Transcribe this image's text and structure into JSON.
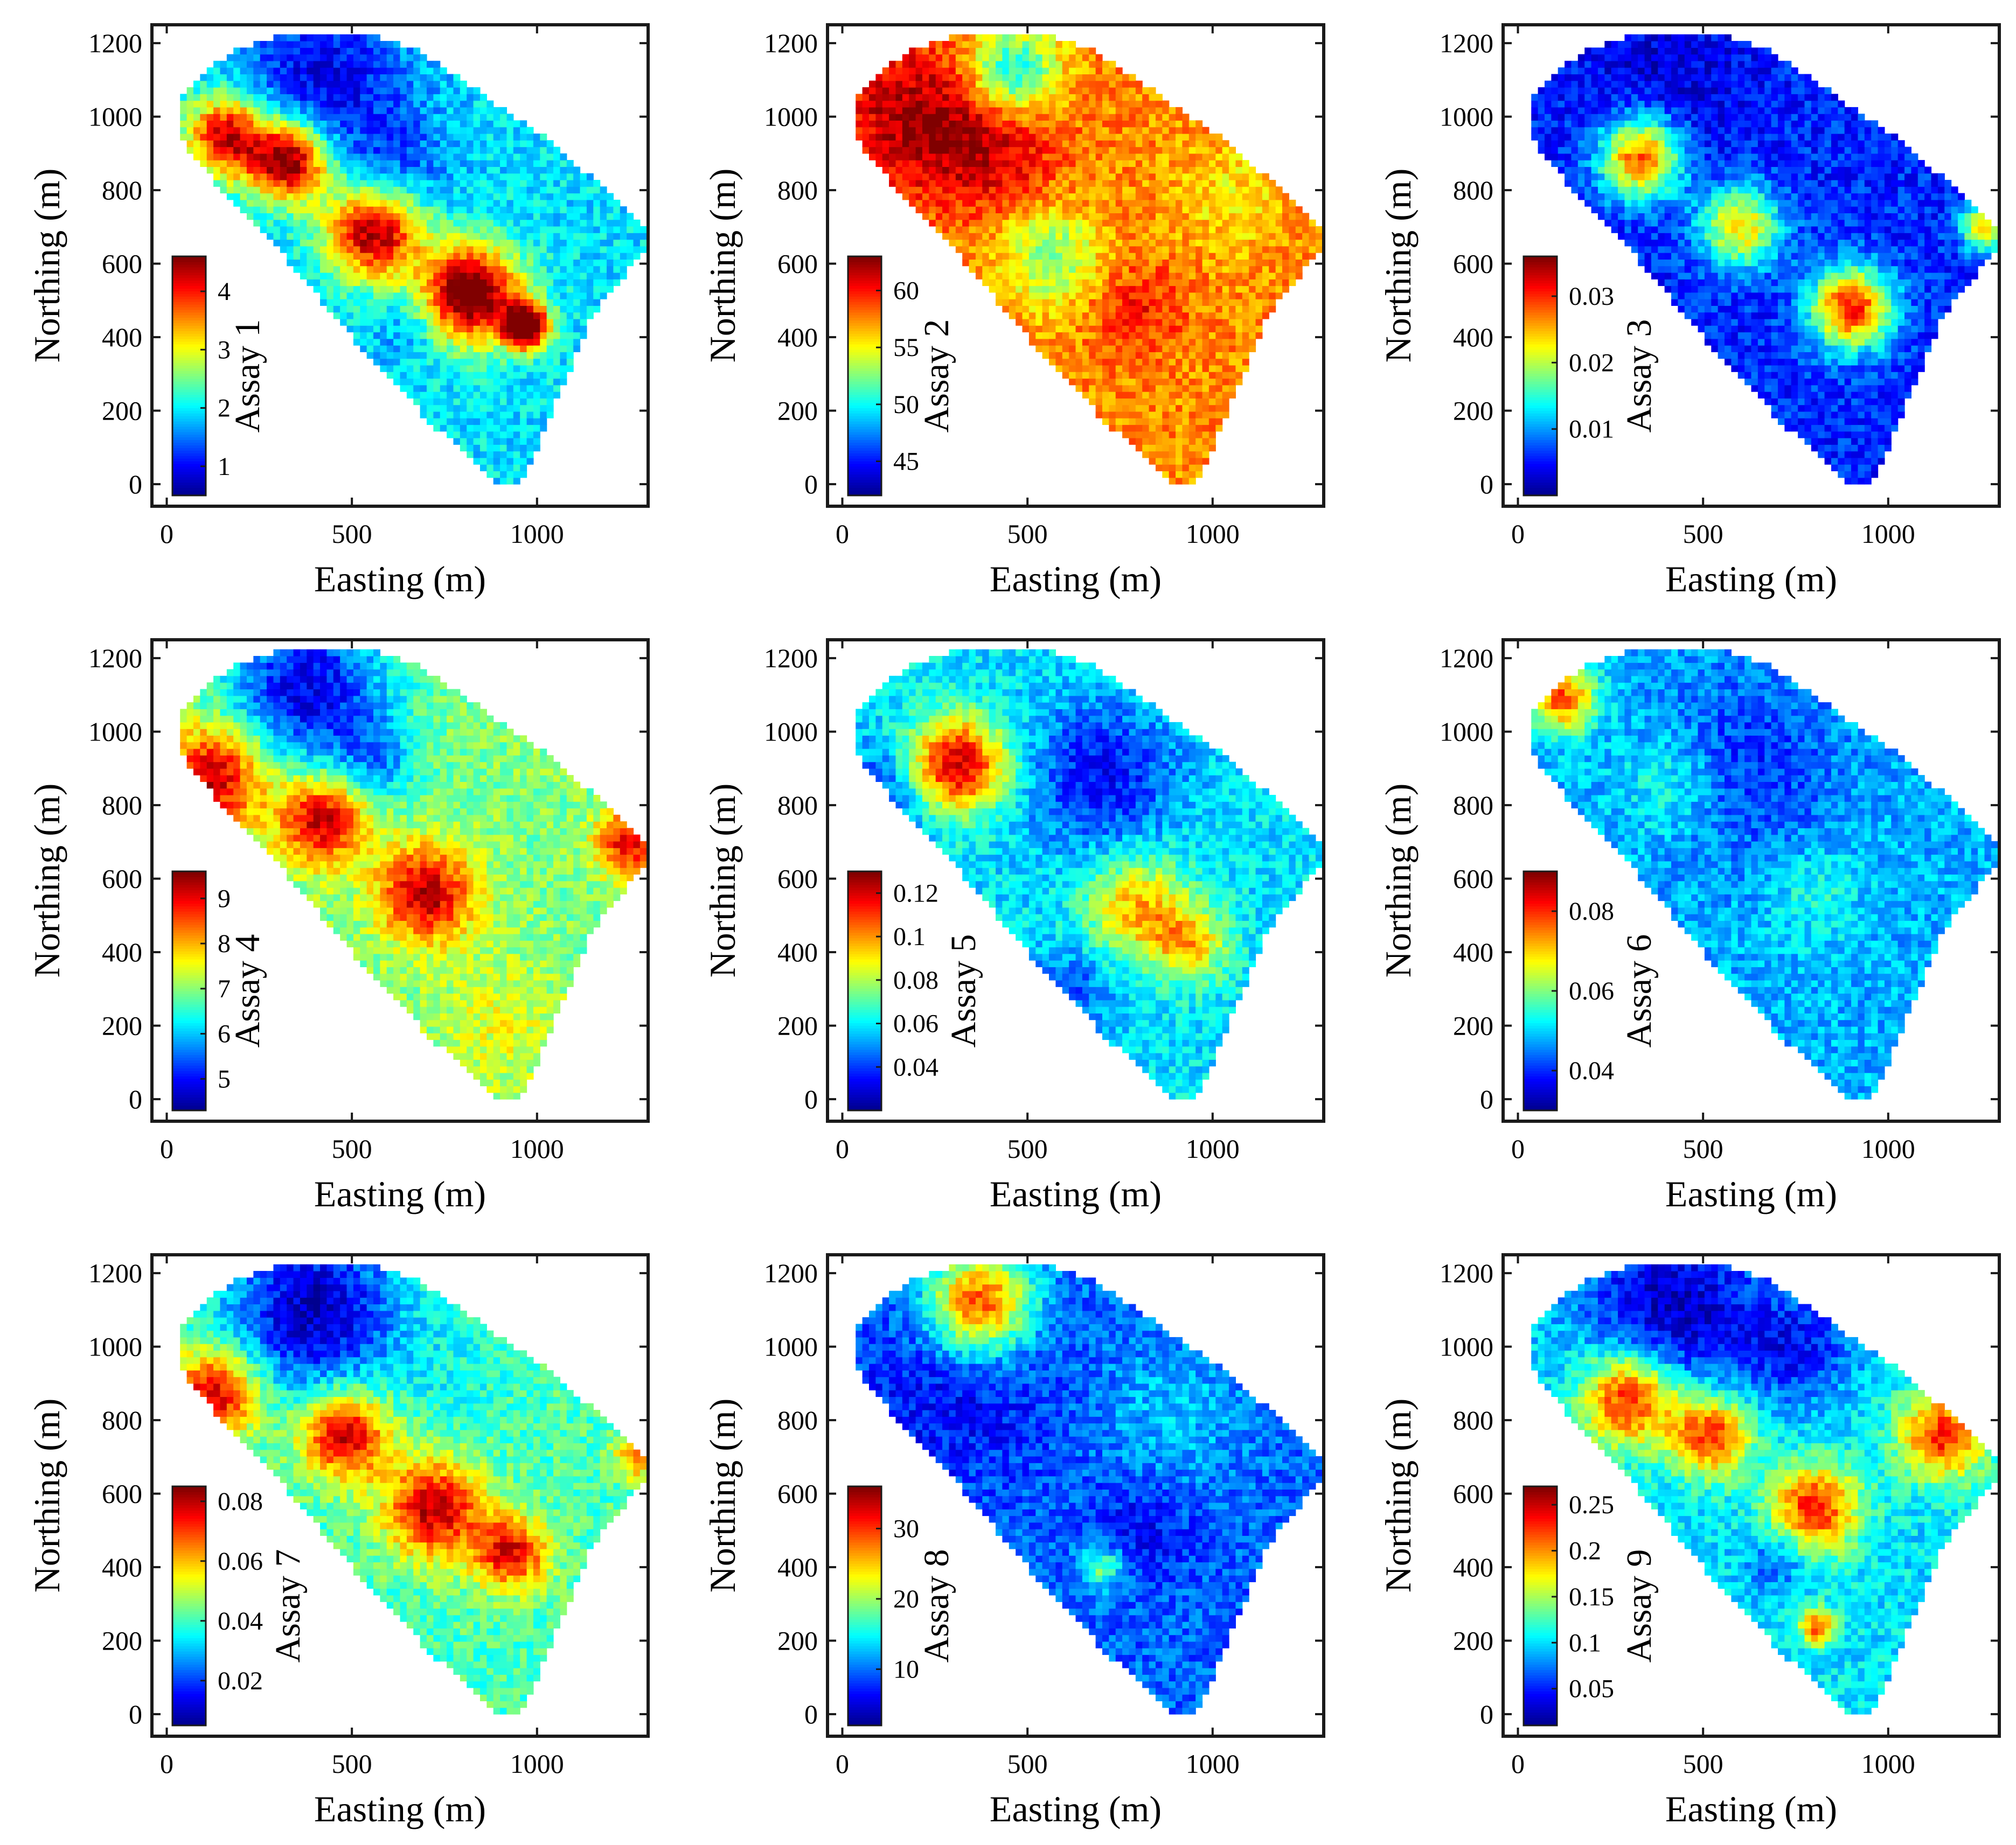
{
  "colors": {
    "jet": [
      "#00008f",
      "#0000ff",
      "#0080ff",
      "#00ffff",
      "#80ff80",
      "#ffff00",
      "#ff8000",
      "#ff0000",
      "#800000"
    ],
    "frame": "#1a1a1a",
    "background": "#ffffff"
  },
  "chart_data": [
    {
      "type": "heatmap",
      "title": "",
      "xlabel": "Easting (m)",
      "ylabel": "Northing (m)",
      "xlim": [
        -40,
        1300
      ],
      "ylim": [
        -60,
        1250
      ],
      "xticks": [
        0,
        500,
        1000
      ],
      "xtick_labels": [
        "0",
        "500",
        "1000"
      ],
      "yticks": [
        0,
        200,
        400,
        600,
        800,
        1000,
        1200
      ],
      "ytick_labels": [
        "0",
        "200",
        "400",
        "600",
        "800",
        "1000",
        "1200"
      ],
      "colorbar": {
        "label": "Assay 1",
        "range": [
          0.5,
          4.6
        ],
        "ticks": [
          1,
          2,
          3,
          4
        ],
        "tick_labels": [
          "1",
          "2",
          "3",
          "4"
        ]
      },
      "background_value": 0.35,
      "hotspots": [
        {
          "x": 160,
          "y": 950,
          "r": 110,
          "v": 0.6
        },
        {
          "x": 330,
          "y": 880,
          "r": 110,
          "v": 0.7
        },
        {
          "x": 560,
          "y": 690,
          "r": 130,
          "v": 0.65
        },
        {
          "x": 820,
          "y": 520,
          "r": 130,
          "v": 0.75
        },
        {
          "x": 970,
          "y": 430,
          "r": 60,
          "v": 0.85
        }
      ],
      "lows": [
        {
          "x": 420,
          "y": 1100,
          "r": 230,
          "v": 0.25
        },
        {
          "x": 620,
          "y": 850,
          "r": 150,
          "v": 0.15
        },
        {
          "x": 650,
          "y": 420,
          "r": 90,
          "v": 0.1
        }
      ]
    },
    {
      "type": "heatmap",
      "title": "",
      "xlabel": "Easting (m)",
      "ylabel": "Northing (m)",
      "xlim": [
        -40,
        1300
      ],
      "ylim": [
        -60,
        1250
      ],
      "xticks": [
        0,
        500,
        1000
      ],
      "xtick_labels": [
        "0",
        "500",
        "1000"
      ],
      "yticks": [
        0,
        200,
        400,
        600,
        800,
        1000,
        1200
      ],
      "ytick_labels": [
        "0",
        "200",
        "400",
        "600",
        "800",
        "1000",
        "1200"
      ],
      "colorbar": {
        "label": "Assay 2",
        "range": [
          42,
          63
        ],
        "ticks": [
          45,
          50,
          55,
          60
        ],
        "tick_labels": [
          "45",
          "50",
          "55",
          "60"
        ]
      },
      "background_value": 0.74,
      "hotspots": [
        {
          "x": 180,
          "y": 1000,
          "r": 200,
          "v": 0.2
        },
        {
          "x": 400,
          "y": 930,
          "r": 180,
          "v": 0.18
        },
        {
          "x": 800,
          "y": 480,
          "r": 120,
          "v": 0.12
        }
      ],
      "lows": [
        {
          "x": 460,
          "y": 1120,
          "r": 120,
          "v": 0.4
        },
        {
          "x": 560,
          "y": 620,
          "r": 130,
          "v": 0.25
        },
        {
          "x": 1050,
          "y": 780,
          "r": 150,
          "v": 0.1
        }
      ]
    },
    {
      "type": "heatmap",
      "title": "",
      "xlabel": "Easting (m)",
      "ylabel": "Northing (m)",
      "xlim": [
        -40,
        1300
      ],
      "ylim": [
        -60,
        1250
      ],
      "xticks": [
        0,
        500,
        1000
      ],
      "xtick_labels": [
        "0",
        "500",
        "1000"
      ],
      "yticks": [
        0,
        200,
        400,
        600,
        800,
        1000,
        1200
      ],
      "ytick_labels": [
        "0",
        "200",
        "400",
        "600",
        "800",
        "1000",
        "1200"
      ],
      "colorbar": {
        "label": "Assay 3",
        "range": [
          0.0,
          0.036
        ],
        "ticks": [
          0.01,
          0.02,
          0.03
        ],
        "tick_labels": [
          "0.01",
          "0.02",
          "0.03"
        ]
      },
      "background_value": 0.16,
      "hotspots": [
        {
          "x": 330,
          "y": 890,
          "r": 110,
          "v": 0.65
        },
        {
          "x": 600,
          "y": 700,
          "r": 110,
          "v": 0.5
        },
        {
          "x": 900,
          "y": 480,
          "r": 110,
          "v": 0.7
        },
        {
          "x": 1260,
          "y": 700,
          "r": 60,
          "v": 0.55
        }
      ],
      "lows": [
        {
          "x": 400,
          "y": 1100,
          "r": 240,
          "v": 0.08
        }
      ]
    },
    {
      "type": "heatmap",
      "title": "",
      "xlabel": "Easting (m)",
      "ylabel": "Northing (m)",
      "xlim": [
        -40,
        1300
      ],
      "ylim": [
        -60,
        1250
      ],
      "xticks": [
        0,
        500,
        1000
      ],
      "xtick_labels": [
        "0",
        "500",
        "1000"
      ],
      "yticks": [
        0,
        200,
        400,
        600,
        800,
        1000,
        1200
      ],
      "ytick_labels": [
        "0",
        "200",
        "400",
        "600",
        "800",
        "1000",
        "1200"
      ],
      "colorbar": {
        "label": "Assay 4",
        "range": [
          4.3,
          9.6
        ],
        "ticks": [
          5,
          6,
          7,
          8,
          9
        ],
        "tick_labels": [
          "5",
          "6",
          "7",
          "8",
          "9"
        ]
      },
      "background_value": 0.5,
      "hotspots": [
        {
          "x": 130,
          "y": 880,
          "r": 140,
          "v": 0.45
        },
        {
          "x": 420,
          "y": 760,
          "r": 120,
          "v": 0.45
        },
        {
          "x": 700,
          "y": 560,
          "r": 130,
          "v": 0.45
        },
        {
          "x": 1250,
          "y": 700,
          "r": 90,
          "v": 0.4
        },
        {
          "x": 900,
          "y": 200,
          "r": 180,
          "v": 0.1
        }
      ],
      "lows": [
        {
          "x": 380,
          "y": 1120,
          "r": 220,
          "v": 0.4
        },
        {
          "x": 560,
          "y": 920,
          "r": 110,
          "v": 0.2
        }
      ]
    },
    {
      "type": "heatmap",
      "title": "",
      "xlabel": "Easting (m)",
      "ylabel": "Northing (m)",
      "xlim": [
        -40,
        1300
      ],
      "ylim": [
        -60,
        1250
      ],
      "xticks": [
        0,
        500,
        1000
      ],
      "xtick_labels": [
        "0",
        "500",
        "1000"
      ],
      "yticks": [
        0,
        200,
        400,
        600,
        800,
        1000,
        1200
      ],
      "ytick_labels": [
        "0",
        "200",
        "400",
        "600",
        "800",
        "1000",
        "1200"
      ],
      "colorbar": {
        "label": "Assay 5",
        "range": [
          0.02,
          0.13
        ],
        "ticks": [
          0.04,
          0.06,
          0.08,
          0.1,
          0.12
        ],
        "tick_labels": [
          "0.04",
          "0.06",
          "0.08",
          "0.1",
          "0.12"
        ]
      },
      "background_value": 0.35,
      "hotspots": [
        {
          "x": 310,
          "y": 910,
          "r": 130,
          "v": 0.6
        },
        {
          "x": 800,
          "y": 520,
          "r": 140,
          "v": 0.35
        },
        {
          "x": 940,
          "y": 420,
          "r": 100,
          "v": 0.3
        }
      ],
      "lows": [
        {
          "x": 100,
          "y": 820,
          "r": 140,
          "v": 0.2
        },
        {
          "x": 700,
          "y": 880,
          "r": 200,
          "v": 0.22
        },
        {
          "x": 620,
          "y": 300,
          "r": 120,
          "v": 0.15
        }
      ]
    },
    {
      "type": "heatmap",
      "title": "",
      "xlabel": "Easting (m)",
      "ylabel": "Northing (m)",
      "xlim": [
        -40,
        1300
      ],
      "ylim": [
        -60,
        1250
      ],
      "xticks": [
        0,
        500,
        1000
      ],
      "xtick_labels": [
        "0",
        "500",
        "1000"
      ],
      "yticks": [
        0,
        200,
        400,
        600,
        800,
        1000,
        1200
      ],
      "ytick_labels": [
        "0",
        "200",
        "400",
        "600",
        "800",
        "1000",
        "1200"
      ],
      "colorbar": {
        "label": "Assay 6",
        "range": [
          0.03,
          0.09
        ],
        "ticks": [
          0.04,
          0.06,
          0.08
        ],
        "tick_labels": [
          "0.04",
          "0.06",
          "0.08"
        ]
      },
      "background_value": 0.3,
      "hotspots": [
        {
          "x": 120,
          "y": 1090,
          "r": 90,
          "v": 0.5
        },
        {
          "x": 420,
          "y": 860,
          "r": 150,
          "v": 0.15
        },
        {
          "x": 800,
          "y": 560,
          "r": 140,
          "v": 0.1
        }
      ],
      "lows": [
        {
          "x": 600,
          "y": 900,
          "r": 250,
          "v": 0.15
        }
      ]
    },
    {
      "type": "heatmap",
      "title": "",
      "xlabel": "Easting (m)",
      "ylabel": "Northing (m)",
      "xlim": [
        -40,
        1300
      ],
      "ylim": [
        -60,
        1250
      ],
      "xticks": [
        0,
        500,
        1000
      ],
      "xtick_labels": [
        "0",
        "500",
        "1000"
      ],
      "yticks": [
        0,
        200,
        400,
        600,
        800,
        1000,
        1200
      ],
      "ytick_labels": [
        "0",
        "200",
        "400",
        "600",
        "800",
        "1000",
        "1200"
      ],
      "colorbar": {
        "label": "Assay 7",
        "range": [
          0.005,
          0.085
        ],
        "ticks": [
          0.02,
          0.04,
          0.06,
          0.08
        ],
        "tick_labels": [
          "0.02",
          "0.04",
          "0.06",
          "0.08"
        ]
      },
      "background_value": 0.45,
      "hotspots": [
        {
          "x": 130,
          "y": 870,
          "r": 120,
          "v": 0.5
        },
        {
          "x": 480,
          "y": 760,
          "r": 120,
          "v": 0.5
        },
        {
          "x": 720,
          "y": 560,
          "r": 130,
          "v": 0.5
        },
        {
          "x": 930,
          "y": 440,
          "r": 100,
          "v": 0.45
        },
        {
          "x": 1270,
          "y": 700,
          "r": 60,
          "v": 0.3
        }
      ],
      "lows": [
        {
          "x": 400,
          "y": 1100,
          "r": 230,
          "v": 0.4
        },
        {
          "x": 780,
          "y": 920,
          "r": 160,
          "v": 0.05
        }
      ]
    },
    {
      "type": "heatmap",
      "title": "",
      "xlabel": "Easting (m)",
      "ylabel": "Northing (m)",
      "xlim": [
        -40,
        1300
      ],
      "ylim": [
        -60,
        1250
      ],
      "xticks": [
        0,
        500,
        1000
      ],
      "xtick_labels": [
        "0",
        "500",
        "1000"
      ],
      "yticks": [
        0,
        200,
        400,
        600,
        800,
        1000,
        1200
      ],
      "ytick_labels": [
        "0",
        "200",
        "400",
        "600",
        "800",
        "1000",
        "1200"
      ],
      "colorbar": {
        "label": "Assay 8",
        "range": [
          2,
          36
        ],
        "ticks": [
          10,
          20,
          30
        ],
        "tick_labels": [
          "10",
          "20",
          "30"
        ]
      },
      "background_value": 0.22,
      "hotspots": [
        {
          "x": 370,
          "y": 1120,
          "r": 140,
          "v": 0.6
        },
        {
          "x": 900,
          "y": 820,
          "r": 200,
          "v": 0.1
        },
        {
          "x": 700,
          "y": 400,
          "r": 60,
          "v": 0.3
        }
      ],
      "lows": [
        {
          "x": 300,
          "y": 880,
          "r": 250,
          "v": 0.1
        },
        {
          "x": 800,
          "y": 500,
          "r": 140,
          "v": 0.1
        }
      ]
    },
    {
      "type": "heatmap",
      "title": "",
      "xlabel": "Easting (m)",
      "ylabel": "Northing (m)",
      "xlim": [
        -40,
        1300
      ],
      "ylim": [
        -60,
        1250
      ],
      "xticks": [
        0,
        500,
        1000
      ],
      "xtick_labels": [
        "0",
        "500",
        "1000"
      ],
      "yticks": [
        0,
        200,
        400,
        600,
        800,
        1000,
        1200
      ],
      "ytick_labels": [
        "0",
        "200",
        "400",
        "600",
        "800",
        "1000",
        "1200"
      ],
      "colorbar": {
        "label": "Assay 9",
        "range": [
          0.01,
          0.27
        ],
        "ticks": [
          0.05,
          0.1,
          0.15,
          0.2,
          0.25
        ],
        "tick_labels": [
          "0.05",
          "0.1",
          "0.15",
          "0.2",
          "0.25"
        ]
      },
      "background_value": 0.35,
      "hotspots": [
        {
          "x": 300,
          "y": 860,
          "r": 130,
          "v": 0.55
        },
        {
          "x": 520,
          "y": 760,
          "r": 110,
          "v": 0.5
        },
        {
          "x": 800,
          "y": 560,
          "r": 120,
          "v": 0.5
        },
        {
          "x": 1150,
          "y": 760,
          "r": 120,
          "v": 0.5
        },
        {
          "x": 810,
          "y": 240,
          "r": 50,
          "v": 0.45
        }
      ],
      "lows": [
        {
          "x": 420,
          "y": 1100,
          "r": 240,
          "v": 0.3
        },
        {
          "x": 760,
          "y": 1000,
          "r": 150,
          "v": 0.2
        },
        {
          "x": 700,
          "y": 420,
          "r": 90,
          "v": 0.15
        }
      ]
    }
  ]
}
